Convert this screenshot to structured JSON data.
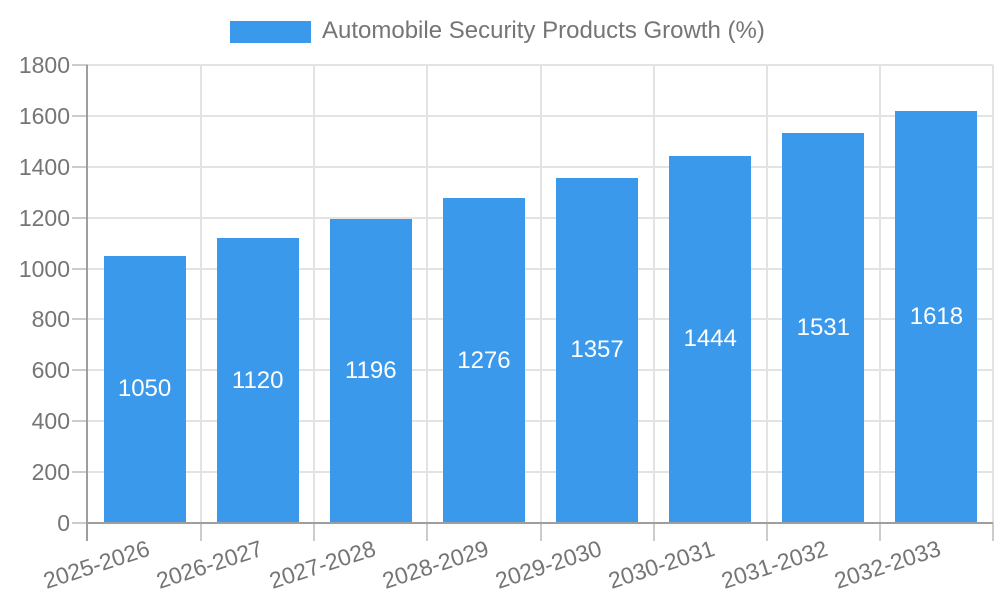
{
  "chart_data": {
    "type": "bar",
    "title": "Automobile Security Products Growth (%)",
    "legend_label": "Automobile Security Products Growth (%)",
    "legend_position": "top",
    "categories": [
      "2025-2026",
      "2026-2027",
      "2027-2028",
      "2028-2029",
      "2029-2030",
      "2030-2031",
      "2031-2032",
      "2032-2033"
    ],
    "values": [
      1050,
      1120,
      1196,
      1276,
      1357,
      1444,
      1531,
      1618
    ],
    "xlabel": "",
    "ylabel": "",
    "ylim": [
      0,
      1800
    ],
    "yticks": [
      0,
      200,
      400,
      600,
      800,
      1000,
      1200,
      1400,
      1600,
      1800
    ],
    "grid": true,
    "value_labels": "centered-inside-bars-white",
    "colors": {
      "bar": "#3B99EC",
      "label_text": "#757575",
      "axis": "#9E9E9E",
      "gridline": "#E3E3E3",
      "tick": "#CCCCCC",
      "value_label": "#FFFFFF",
      "background": "#FFFFFF"
    }
  }
}
